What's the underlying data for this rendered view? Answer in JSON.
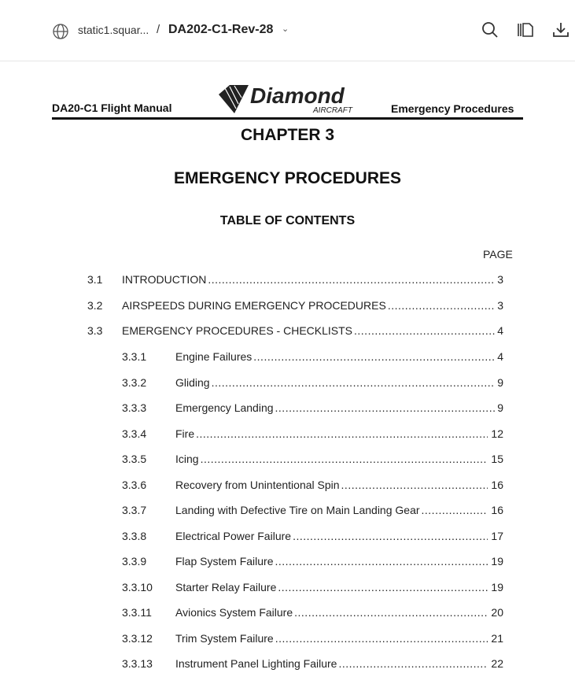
{
  "toolbar": {
    "site": "static1.squar...",
    "separator": "/",
    "document_title": "DA202-C1-Rev-28",
    "icons": [
      "globe-icon",
      "chevron-down-icon",
      "search-icon",
      "page-view-icon",
      "download-icon"
    ]
  },
  "page": {
    "header_left": "DA20-C1 Flight Manual",
    "header_right": "Emergency Procedures",
    "logo_text": "Diamond AIRCRAFT",
    "chapter": "CHAPTER 3",
    "title": "EMERGENCY PROCEDURES",
    "toc_heading": "TABLE OF CONTENTS",
    "page_label": "PAGE",
    "entries": [
      {
        "num": "3.1",
        "title": "INTRODUCTION",
        "page": "3",
        "level": 1
      },
      {
        "num": "3.2",
        "title": "AIRSPEEDS DURING EMERGENCY PROCEDURES",
        "page": "3",
        "level": 1
      },
      {
        "num": "3.3",
        "title": "EMERGENCY PROCEDURES - CHECKLISTS",
        "page": "4",
        "level": 1
      },
      {
        "num": "3.3.1",
        "title": "Engine Failures",
        "page": "4",
        "level": 2
      },
      {
        "num": "3.3.2",
        "title": "Gliding",
        "page": "9",
        "level": 2
      },
      {
        "num": "3.3.3",
        "title": "Emergency Landing",
        "page": "9",
        "level": 2
      },
      {
        "num": "3.3.4",
        "title": "Fire",
        "page": "12",
        "level": 2
      },
      {
        "num": "3.3.5",
        "title": "Icing",
        "page": "15",
        "level": 2
      },
      {
        "num": "3.3.6",
        "title": "Recovery from Unintentional Spin",
        "page": "16",
        "level": 2
      },
      {
        "num": "3.3.7",
        "title": "Landing with Defective Tire on Main Landing Gear",
        "page": "16",
        "level": 2
      },
      {
        "num": "3.3.8",
        "title": "Electrical Power Failure",
        "page": "17",
        "level": 2
      },
      {
        "num": "3.3.9",
        "title": "Flap System Failure",
        "page": "19",
        "level": 2
      },
      {
        "num": "3.3.10",
        "title": "Starter Relay Failure",
        "page": "19",
        "level": 2
      },
      {
        "num": "3.3.11",
        "title": "Avionics System Failure",
        "page": "20",
        "level": 2
      },
      {
        "num": "3.3.12",
        "title": "Trim System Failure",
        "page": "21",
        "level": 2
      },
      {
        "num": "3.3.13",
        "title": "Instrument Panel Lighting Failure",
        "page": "22",
        "level": 2
      }
    ]
  }
}
